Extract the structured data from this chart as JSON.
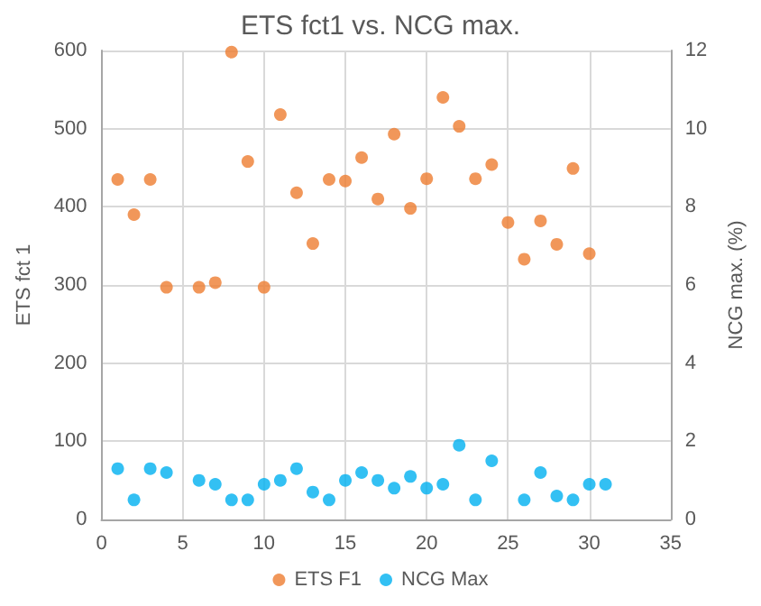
{
  "chart_data": {
    "type": "scatter",
    "title": "ETS fct1 vs. NCG max.",
    "ylabel": "ETS fct 1",
    "y2label": "NCG max. (%)",
    "xlim": [
      0,
      35
    ],
    "xticks": [
      0,
      5,
      10,
      15,
      20,
      25,
      30,
      35
    ],
    "ylim": [
      0,
      600
    ],
    "yticks": [
      0,
      100,
      200,
      300,
      400,
      500,
      600
    ],
    "y2lim": [
      0,
      12
    ],
    "y2ticks": [
      0,
      2,
      4,
      6,
      8,
      10,
      12
    ],
    "grid": true,
    "legend": "bottom",
    "marker": "circle",
    "series": [
      {
        "name": "ETS F1",
        "color": "#ed7d31",
        "x": [
          1,
          2,
          3,
          4,
          6,
          7,
          8,
          9,
          10,
          11,
          12,
          13,
          14,
          15,
          16,
          17,
          18,
          19,
          20,
          21,
          22,
          23,
          24,
          25,
          26,
          27,
          28,
          29,
          30
        ],
        "values": [
          435,
          390,
          435,
          297,
          297,
          303,
          598,
          458,
          297,
          518,
          418,
          353,
          435,
          433,
          463,
          410,
          493,
          398,
          436,
          540,
          503,
          436,
          454,
          380,
          333,
          382,
          352,
          449,
          340
        ]
      },
      {
        "name": "NCG Max",
        "color": "#00b0f0",
        "axis": "y2",
        "x": [
          1,
          2,
          3,
          4,
          6,
          7,
          8,
          9,
          10,
          11,
          12,
          13,
          14,
          15,
          16,
          17,
          18,
          19,
          20,
          21,
          22,
          23,
          24,
          26,
          27,
          28,
          29,
          30,
          31
        ],
        "values": [
          1.3,
          0.5,
          1.3,
          1.2,
          1.0,
          0.9,
          0.5,
          0.5,
          0.9,
          1.0,
          1.3,
          0.7,
          0.5,
          1.0,
          1.2,
          1.0,
          0.8,
          1.1,
          0.8,
          0.9,
          1.9,
          0.5,
          1.5,
          0.5,
          1.2,
          0.6,
          0.5,
          0.9,
          0.9
        ]
      }
    ]
  }
}
